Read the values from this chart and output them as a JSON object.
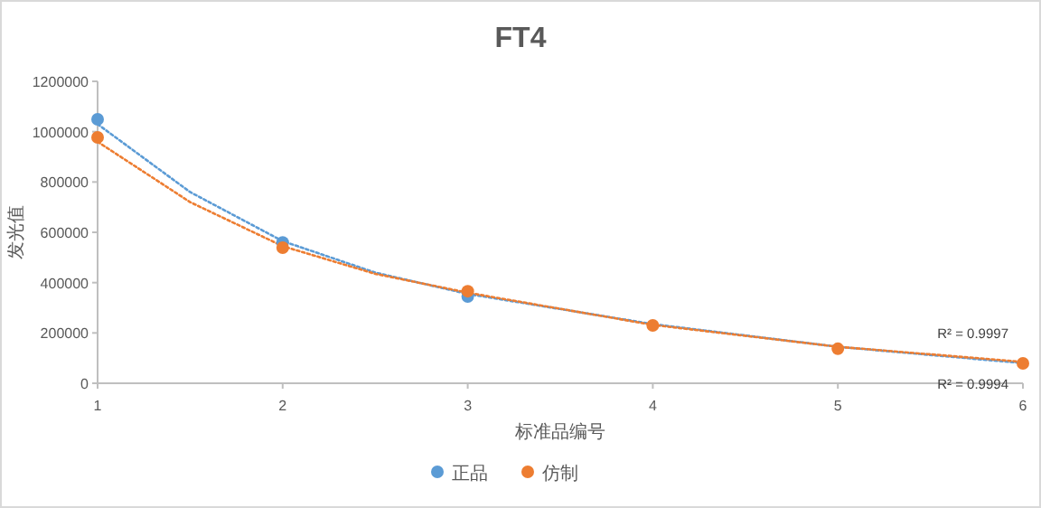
{
  "chart_data": {
    "type": "scatter",
    "title": "FT4",
    "xlabel": "标准品编号",
    "ylabel": "发光值",
    "x": [
      1,
      2,
      3,
      4,
      5,
      6
    ],
    "xlim": [
      1,
      6
    ],
    "xticks": [
      1,
      2,
      3,
      4,
      5,
      6
    ],
    "ylim": [
      0,
      1200000
    ],
    "yticks": [
      0,
      200000,
      400000,
      600000,
      800000,
      1000000,
      1200000
    ],
    "grid": false,
    "legend": "bottom",
    "series": [
      {
        "name": "正品",
        "color": "#5b9bd5",
        "marker": "circle",
        "values": [
          1049000,
          560000,
          345000,
          null,
          null,
          null
        ]
      },
      {
        "name": "仿制",
        "color": "#ed7d31",
        "marker": "circle",
        "values": [
          977000,
          539000,
          366000,
          230000,
          137000,
          79000
        ]
      },
      {
        "type": "line",
        "line_style": "dotted",
        "marker": "none",
        "color": "#5b9bd5",
        "x": [
          1,
          1.5,
          2,
          2.5,
          3,
          4,
          5,
          6
        ],
        "values": [
          1030000,
          760000,
          565000,
          440000,
          355000,
          235000,
          145000,
          80000
        ]
      },
      {
        "type": "line",
        "line_style": "dotted",
        "marker": "none",
        "color": "#ed7d31",
        "x": [
          1,
          1.5,
          2,
          2.5,
          3,
          4,
          5,
          6
        ],
        "values": [
          960000,
          720000,
          545000,
          435000,
          360000,
          232000,
          145000,
          85000
        ]
      }
    ],
    "annotations": [
      {
        "text": "R² = 0.9997",
        "x": 6,
        "y": 80000
      },
      {
        "text": "R² = 0.9994",
        "x": 6,
        "y": 80000
      }
    ]
  }
}
